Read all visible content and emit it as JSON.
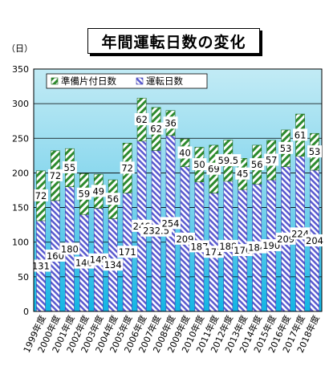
{
  "chart_data": {
    "type": "bar",
    "title": "年間運転日数の変化",
    "ylabel": "（日）",
    "xlabel": "",
    "ylim": [
      0,
      350
    ],
    "yticks": [
      0,
      50,
      100,
      150,
      200,
      250,
      300,
      350
    ],
    "grid": true,
    "legend_position": "top-left",
    "categories": [
      "1999年度",
      "2000年度",
      "2001年度",
      "2002年度",
      "2003年度",
      "2004年度",
      "2005年度",
      "2006年度",
      "2007年度",
      "2008年度",
      "2009年度",
      "2010年度",
      "2011年度",
      "2012年度",
      "2013年度",
      "2014年度",
      "2015年度",
      "2016年度",
      "2017年度",
      "2018年度"
    ],
    "series": [
      {
        "name": "運転日数",
        "stack": "bottom",
        "values": [
          131,
          160,
          180,
          140,
          149,
          134,
          171,
          246,
          232.5,
          254,
          209,
          187,
          171,
          188,
          176,
          184,
          190,
          209,
          224,
          204
        ],
        "labels": [
          "131",
          "160",
          "180",
          "140",
          "149",
          "134",
          "171",
          "246",
          "232.5",
          "254",
          "209",
          "187",
          "171",
          "188",
          "176",
          "184",
          "190",
          "209",
          "224",
          "204"
        ]
      },
      {
        "name": "準備片付日数",
        "stack": "top",
        "values": [
          72,
          72,
          55,
          59,
          49,
          56,
          72,
          62,
          62,
          36,
          40,
          50,
          69,
          59.5,
          45,
          56,
          57,
          53,
          61,
          53
        ],
        "labels": [
          "72",
          "72",
          "55",
          "59",
          "49",
          "56",
          "72",
          "62",
          "62",
          "36",
          "40",
          "50",
          "69",
          "59.5",
          "45",
          "56",
          "57",
          "53",
          "61",
          "53"
        ]
      }
    ],
    "colors": {
      "operation": "#6b6bd8",
      "prep": "#2e8b2e",
      "plot_top": "#b2e6f2",
      "plot_bottom": "#14b7e6"
    }
  }
}
